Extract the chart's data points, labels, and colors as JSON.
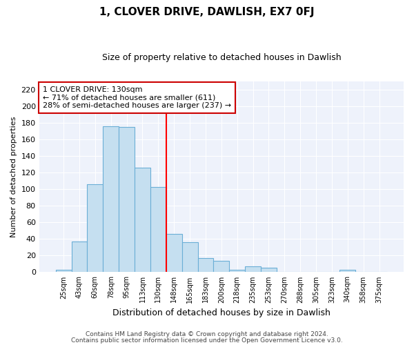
{
  "title": "1, CLOVER DRIVE, DAWLISH, EX7 0FJ",
  "subtitle": "Size of property relative to detached houses in Dawlish",
  "xlabel": "Distribution of detached houses by size in Dawlish",
  "ylabel": "Number of detached properties",
  "bar_labels": [
    "25sqm",
    "43sqm",
    "60sqm",
    "78sqm",
    "95sqm",
    "113sqm",
    "130sqm",
    "148sqm",
    "165sqm",
    "183sqm",
    "200sqm",
    "218sqm",
    "235sqm",
    "253sqm",
    "270sqm",
    "288sqm",
    "305sqm",
    "323sqm",
    "340sqm",
    "358sqm",
    "375sqm"
  ],
  "bar_values": [
    3,
    37,
    106,
    176,
    175,
    126,
    103,
    46,
    36,
    17,
    14,
    3,
    7,
    5,
    0,
    0,
    0,
    0,
    3,
    0,
    0
  ],
  "bar_color": "#c5dff0",
  "bar_edge_color": "#6aaed6",
  "vline_x": 6.5,
  "vline_color": "red",
  "ylim": [
    0,
    230
  ],
  "yticks": [
    0,
    20,
    40,
    60,
    80,
    100,
    120,
    140,
    160,
    180,
    200,
    220
  ],
  "annotation_line1": "1 CLOVER DRIVE: 130sqm",
  "annotation_line2": "← 71% of detached houses are smaller (611)",
  "annotation_line3": "28% of semi-detached houses are larger (237) →",
  "footer_line1": "Contains HM Land Registry data © Crown copyright and database right 2024.",
  "footer_line2": "Contains public sector information licensed under the Open Government Licence v3.0.",
  "background_color": "#eef2fb"
}
